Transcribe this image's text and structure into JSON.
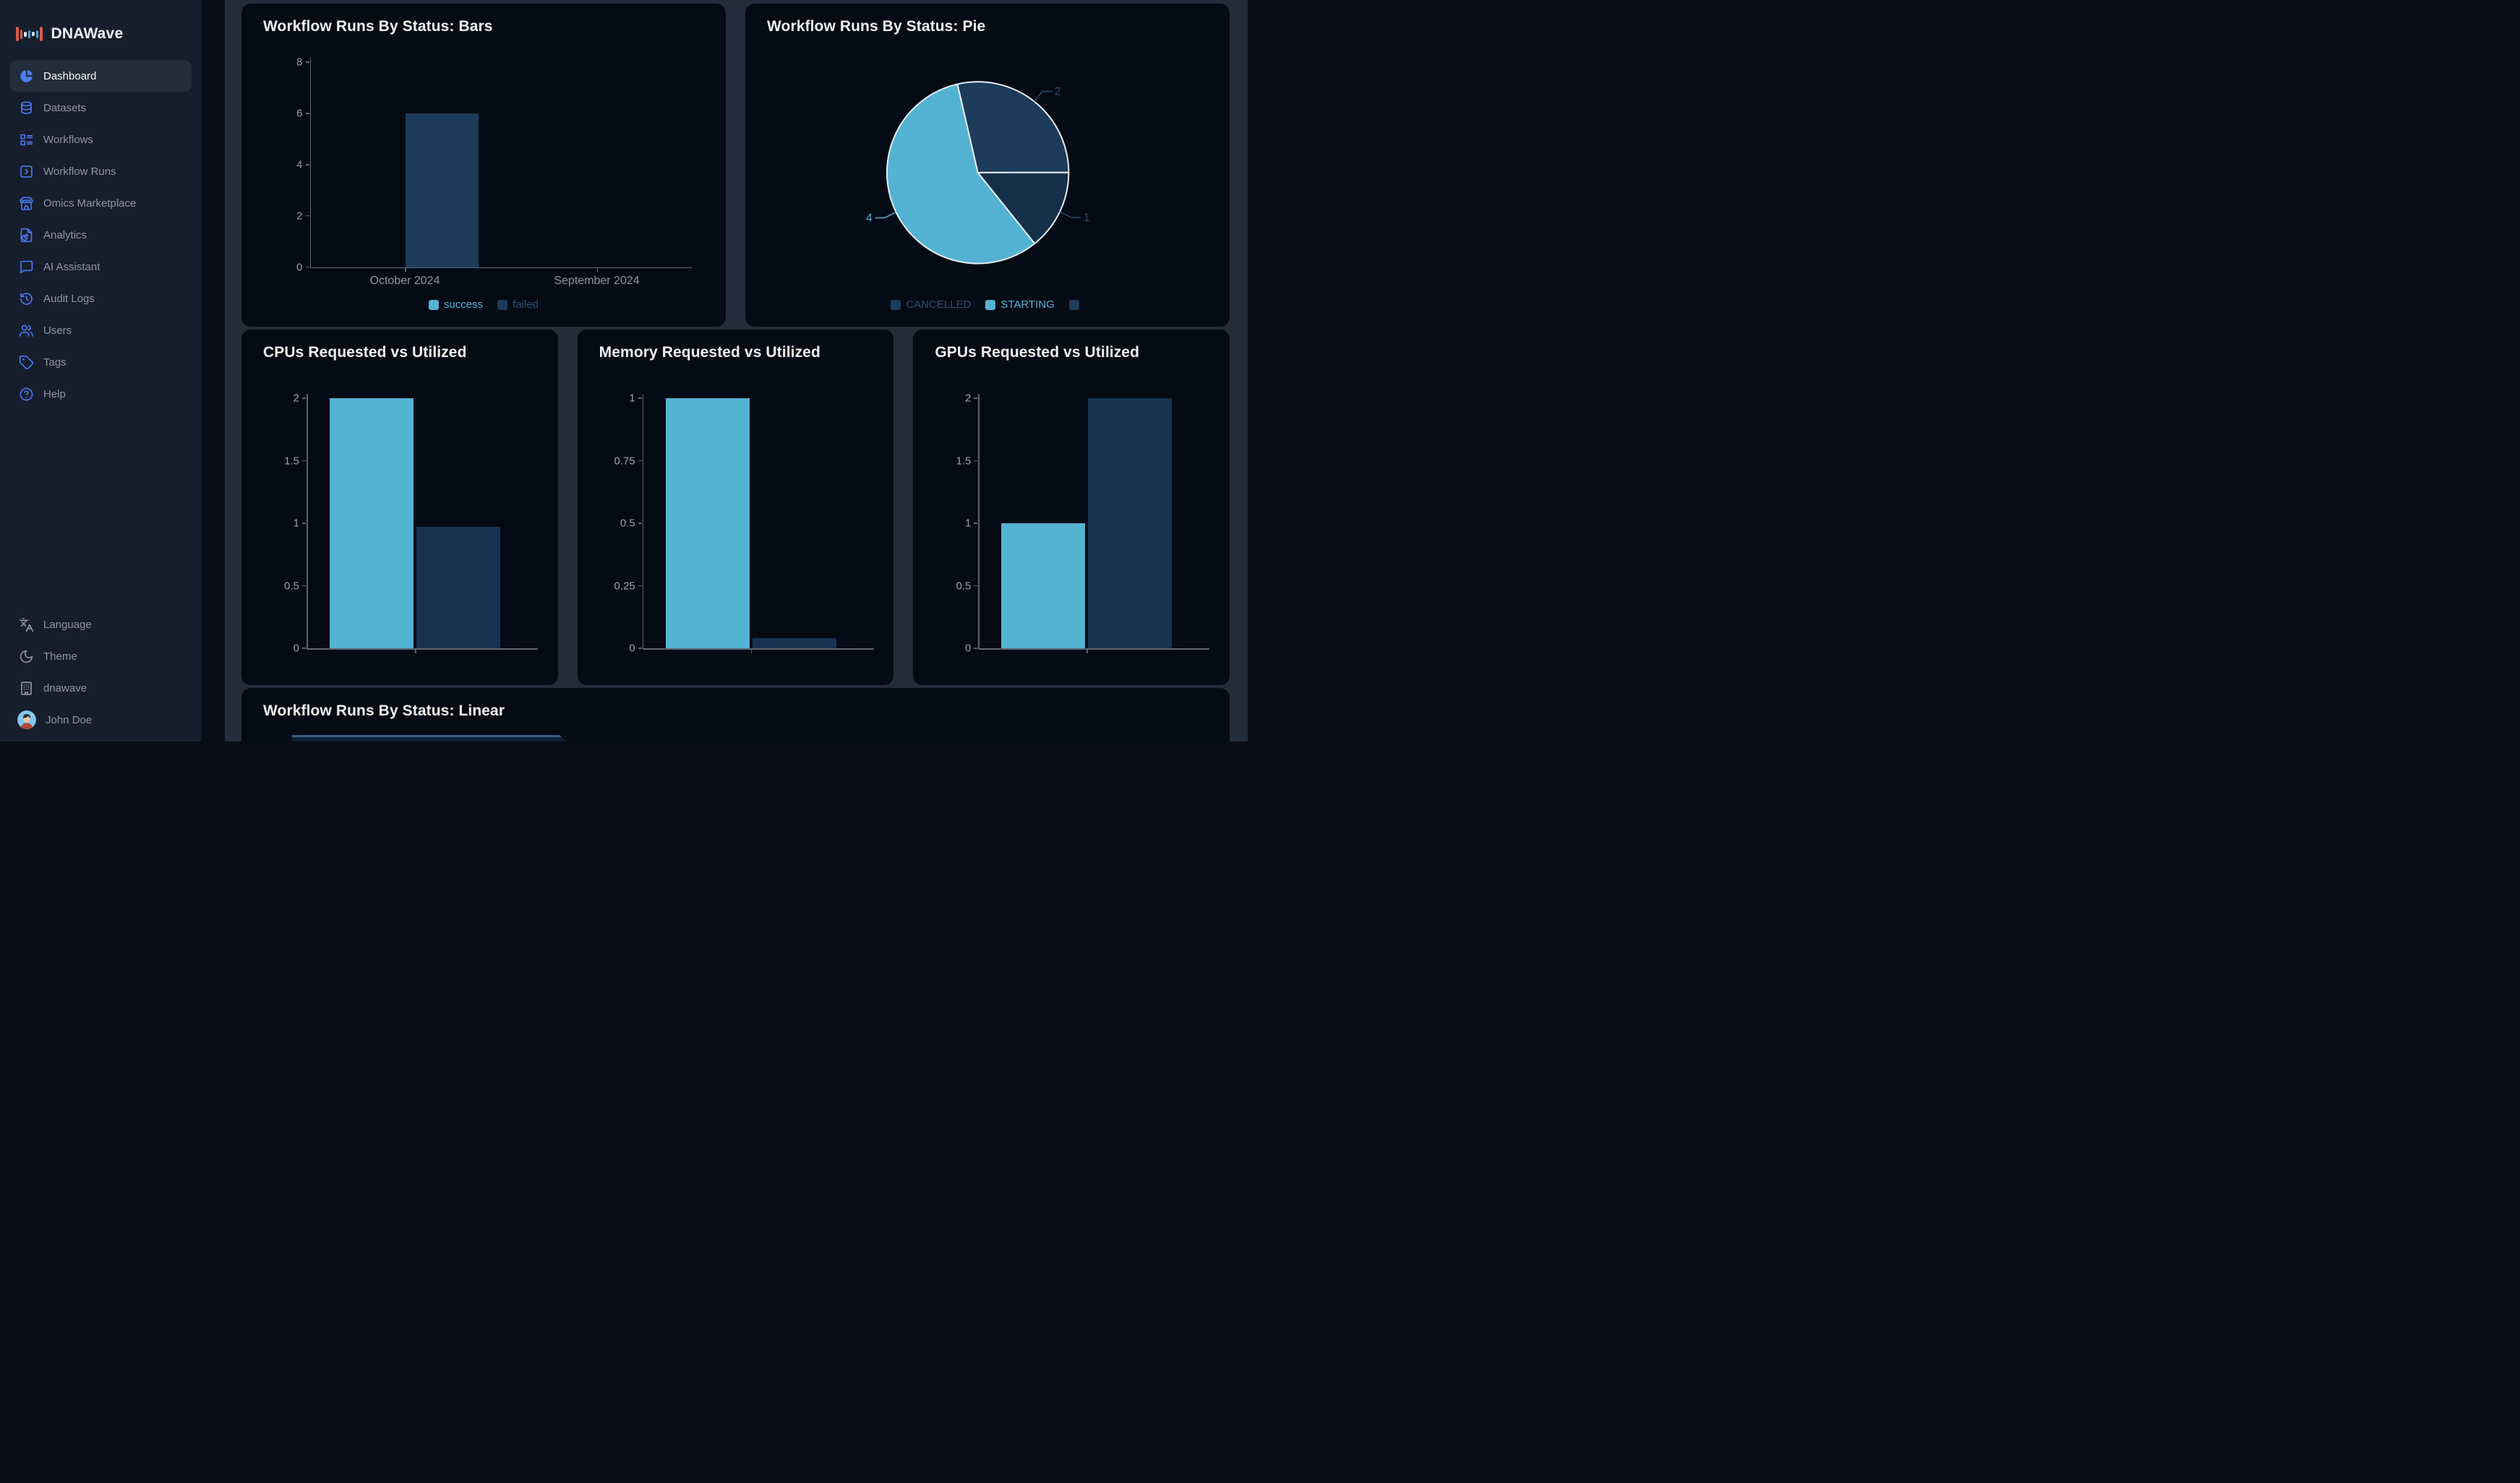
{
  "colors": {
    "accent_blue": "#4c7ef3",
    "cyan": "#54b2d3",
    "navy_bar": "#17334f",
    "navy_bar_dark": "#1d3b5a",
    "card_bg": "#050b15",
    "page_bg": "#070c15",
    "panel_bg": "#232c3b",
    "sidebar_bg": "#161e2d",
    "title_text": "#eef2f7",
    "tick_text": "#99a2ae",
    "dim_legend_text": "#31506f",
    "axis_line": "#5c6673",
    "pie_border": "#e8eef5"
  },
  "sidebar": {
    "logo": {
      "label": "DNAWave",
      "icon": "waveform-logo"
    },
    "items": [
      {
        "label": "Dashboard",
        "icon": "chart-pie",
        "active": true
      },
      {
        "label": "Datasets",
        "icon": "database"
      },
      {
        "label": "Workflows",
        "icon": "layout-list"
      },
      {
        "label": "Workflow Runs",
        "icon": "square-chevron-right"
      },
      {
        "label": "Omics Marketplace",
        "icon": "store"
      },
      {
        "label": "Analytics",
        "icon": "file-chart"
      },
      {
        "label": "AI Assistant",
        "icon": "message-square"
      },
      {
        "label": "Audit Logs",
        "icon": "history"
      },
      {
        "label": "Users",
        "icon": "users"
      },
      {
        "label": "Tags",
        "icon": "tag"
      },
      {
        "label": "Help",
        "icon": "help-circle"
      }
    ],
    "footer_items": [
      {
        "label": "Language",
        "icon": "languages"
      },
      {
        "label": "Theme",
        "icon": "moon"
      },
      {
        "label": "dnawave",
        "icon": "building"
      },
      {
        "label": "John Doe",
        "icon": "avatar"
      }
    ]
  },
  "chart_data": [
    {
      "id": "status-bars",
      "type": "bar",
      "title": "Workflow Runs By Status: Bars",
      "categories": [
        "October 2024",
        "September 2024"
      ],
      "series": [
        {
          "name": "success",
          "color": "#54b2d3",
          "values": [
            0,
            0
          ],
          "legend_dimmed": false
        },
        {
          "name": "failed",
          "color": "#1d3b5a",
          "values": [
            6,
            0
          ],
          "legend_dimmed": true
        }
      ],
      "ylim": [
        0,
        8
      ],
      "yticks": [
        0,
        2,
        4,
        6,
        8
      ],
      "legend_position": "bottom"
    },
    {
      "id": "status-pie",
      "type": "pie",
      "title": "Workflow Runs By Status: Pie",
      "start_angle_deg": -13,
      "slices": [
        {
          "name": "CANCELLED",
          "value": 2,
          "color": "#1d3b5a",
          "label_color": "#2e4d6d"
        },
        {
          "name": "",
          "value": 1,
          "color": "#16304b",
          "label_color": "#2e4d6d"
        },
        {
          "name": "STARTING",
          "value": 4,
          "color": "#54b2d3",
          "label_color": "#54b2d3"
        }
      ],
      "legend": [
        {
          "label": "CANCELLED",
          "color": "#1d3b5a",
          "dimmed": true
        },
        {
          "label": "STARTING",
          "color": "#54b2d3",
          "dimmed": false
        },
        {
          "label": "",
          "color": "#1d3b5a",
          "dimmed": true
        }
      ],
      "legend_position": "bottom"
    },
    {
      "id": "cpus",
      "type": "bar",
      "title": "CPUs Requested vs Utilized",
      "bars": [
        {
          "name": "requested",
          "value": 2,
          "color": "#54b2d3"
        },
        {
          "name": "utilized",
          "value": 0.97,
          "color": "#17334f"
        }
      ],
      "ylim": [
        0,
        2
      ],
      "yticks": [
        0,
        0.5,
        1,
        1.5,
        2
      ]
    },
    {
      "id": "memory",
      "type": "bar",
      "title": "Memory Requested vs Utilized",
      "bars": [
        {
          "name": "requested",
          "value": 1,
          "color": "#54b2d3"
        },
        {
          "name": "utilized",
          "value": 0.04,
          "color": "#17334f"
        }
      ],
      "ylim": [
        0,
        1
      ],
      "yticks": [
        0,
        0.25,
        0.5,
        0.75,
        1
      ]
    },
    {
      "id": "gpus",
      "type": "bar",
      "title": "GPUs Requested vs Utilized",
      "bars": [
        {
          "name": "requested",
          "value": 1,
          "color": "#54b2d3"
        },
        {
          "name": "utilized",
          "value": 2,
          "color": "#17334f"
        }
      ],
      "ylim": [
        0,
        2
      ],
      "yticks": [
        0,
        0.5,
        1,
        1.5,
        2
      ]
    },
    {
      "id": "status-linear",
      "type": "area",
      "title": "Workflow Runs By Status: Linear",
      "clipped": true
    }
  ]
}
